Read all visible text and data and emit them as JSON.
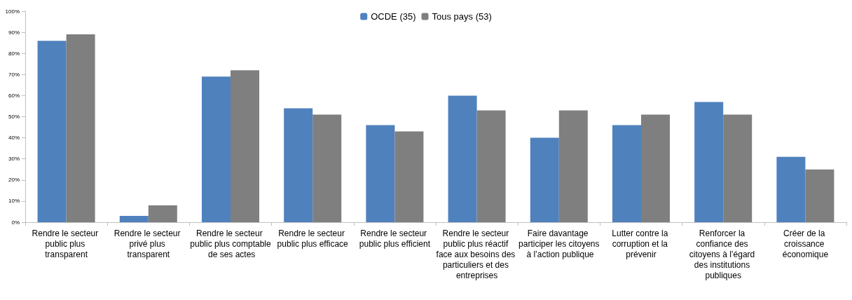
{
  "chart_data": {
    "type": "bar",
    "categories": [
      "Rendre le secteur public plus transparent",
      "Rendre le secteur privé plus transparent",
      "Rendre le secteur public plus comptable de ses actes",
      "Rendre le secteur public plus efficace",
      "Rendre le secteur public plus efficient",
      "Rendre le secteur public plus réactif face aux besoins des particuliers et des entreprises",
      "Faire davantage participer les citoyens à l’action publique",
      "Lutter contre la corruption et la prévenir",
      "Renforcer la confiance des citoyens à l’égard des institutions publiques",
      "Créer de la croissance économique"
    ],
    "series": [
      {
        "name": "OCDE (35)",
        "color": "#4f81bd",
        "values": [
          86,
          3,
          69,
          54,
          46,
          60,
          40,
          46,
          57,
          31
        ]
      },
      {
        "name": "Tous pays (53)",
        "color": "#7f7f7f",
        "values": [
          89,
          8,
          72,
          51,
          43,
          53,
          53,
          51,
          51,
          25
        ]
      }
    ],
    "ylim": [
      0,
      100
    ],
    "yticks": [
      {
        "value": 0,
        "label": "0%"
      },
      {
        "value": 10,
        "label": "10%"
      },
      {
        "value": 20,
        "label": "20%"
      },
      {
        "value": 30,
        "label": "30%"
      },
      {
        "value": 40,
        "label": "40%"
      },
      {
        "value": 50,
        "label": "50%"
      },
      {
        "value": 60,
        "label": "60%"
      },
      {
        "value": 70,
        "label": "70%"
      },
      {
        "value": 80,
        "label": "80%"
      },
      {
        "value": 90,
        "label": "90%"
      },
      {
        "value": 100,
        "label": "100%"
      }
    ],
    "grid": false,
    "legend": "top"
  }
}
